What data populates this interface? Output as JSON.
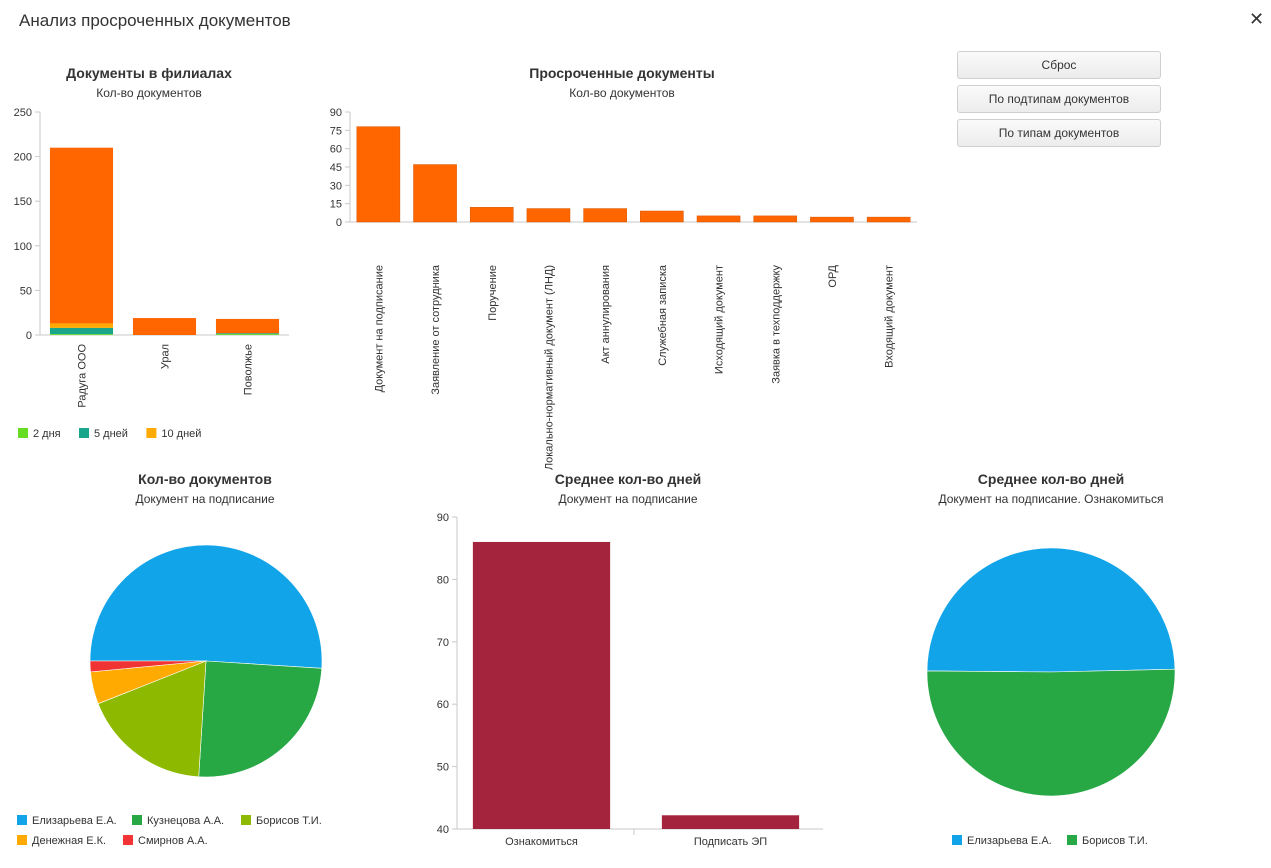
{
  "window": {
    "title": "Анализ просроченных документов",
    "close_icon": "✕"
  },
  "buttons": {
    "reset": "Сброс",
    "by_subtypes": "По подтипам документов",
    "by_types": "По типам документов"
  },
  "chart_data": [
    {
      "id": "branches",
      "type": "bar",
      "stacked": true,
      "title": "Документы в филиалах",
      "subtitle": "Кол-во документов",
      "categories": [
        "Радуга ООО",
        "Урал",
        "Поволжье"
      ],
      "series": [
        {
          "name": "",
          "color": "#ff6600",
          "values": [
            197,
            19,
            16
          ]
        },
        {
          "name": "10 дней",
          "color": "#ffaa00",
          "values": [
            5,
            0,
            0
          ]
        },
        {
          "name": "5 дней",
          "color": "#1aa68a",
          "values": [
            7,
            0,
            1
          ]
        },
        {
          "name": "2 дня",
          "color": "#66dd22",
          "values": [
            1,
            0,
            1
          ]
        }
      ],
      "legend": [
        "2 дня",
        "5 дней",
        "10 дней"
      ],
      "legend_colors": [
        "#66dd22",
        "#1aa68a",
        "#ffaa00"
      ],
      "ylim": [
        0,
        250
      ],
      "yticks": [
        0,
        50,
        100,
        150,
        200,
        250
      ]
    },
    {
      "id": "overdue",
      "type": "bar",
      "title": "Просроченные документы",
      "subtitle": "Кол-во документов",
      "categories": [
        "Документ на подписание",
        "Заявление от сотрудника",
        "Поручение",
        "Локально-нормативный документ (ЛНД)",
        "Акт аннулирования",
        "Служебная записка",
        "Исходящий документ",
        "Заявка в техподдержку",
        "ОРД",
        "Входящий документ"
      ],
      "values": [
        78,
        47,
        12,
        11,
        11,
        9,
        5,
        5,
        4,
        4
      ],
      "color": "#ff6600",
      "ylim": [
        0,
        90
      ],
      "yticks": [
        0,
        15,
        30,
        45,
        60,
        75,
        90
      ]
    },
    {
      "id": "count_pie",
      "type": "pie",
      "title": "Кол-во документов",
      "subtitle": "Документ на подписание",
      "labels": [
        "Елизарьева Е.А.",
        "Кузнецова А.А.",
        "Борисов Т.И.",
        "Денежная Е.К.",
        "Смирнов А.А."
      ],
      "values": [
        51,
        25,
        18,
        4.5,
        1.5
      ],
      "colors": [
        "#12a4e9",
        "#27a844",
        "#8dba00",
        "#ffaa00",
        "#f03434"
      ]
    },
    {
      "id": "avg_days",
      "type": "bar",
      "title": "Среднее кол-во дней",
      "subtitle": "Документ на подписание",
      "categories": [
        "Ознакомиться",
        "Подписать ЭП"
      ],
      "values": [
        86,
        42.2
      ],
      "color": "#a5243d",
      "ylim": [
        40,
        90
      ],
      "yticks": [
        40,
        50,
        60,
        70,
        80,
        90
      ]
    },
    {
      "id": "avg_days_pie",
      "type": "pie",
      "title": "Среднее кол-во дней",
      "subtitle": "Документ на подписание. Ознакомиться",
      "labels": [
        "Елизарьева Е.А.",
        "Борисов Т.И."
      ],
      "values": [
        49.5,
        50.5
      ],
      "colors": [
        "#12a4e9",
        "#27a844"
      ]
    }
  ]
}
